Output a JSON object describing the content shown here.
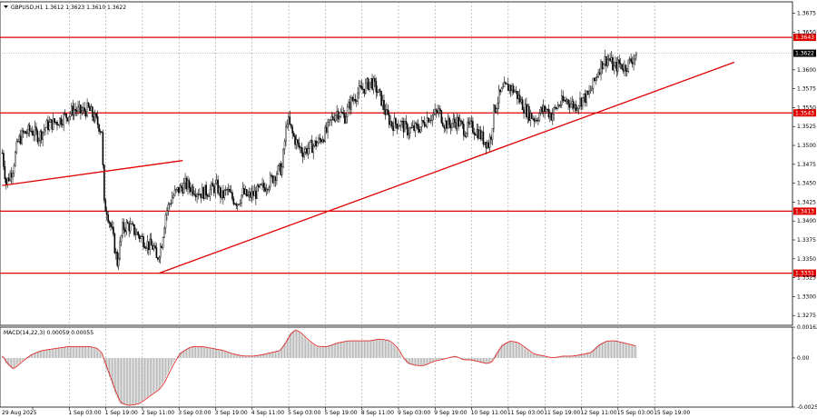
{
  "header": {
    "title": "GBPUSD,H1  1.3612 1.3623 1.3610 1.3622",
    "macd_label": "MACD(14,22,3) 0.00059 0.00055"
  },
  "colors": {
    "level_line": "#e00000",
    "trend_line": "#e00000",
    "candle": "#000000",
    "grid": "#8a8a8a",
    "macd_hist": "#a8a8a8",
    "macd_signal": "#e03030",
    "current_price_line": "#aaaaaa"
  },
  "chart_data": [
    {
      "type": "candlestick",
      "symbol": "GBPUSD",
      "timeframe": "H1",
      "last_bar": {
        "open": 1.3612,
        "high": 1.3623,
        "low": 1.361,
        "close": 1.3622
      },
      "ylim": [
        1.3262,
        1.369
      ],
      "y_ticks": [
        "1.3675",
        "1.3650",
        "1.3643",
        "1.3622",
        "1.3600",
        "1.3575",
        "1.3550",
        "1.3543",
        "1.3525",
        "1.3500",
        "1.3475",
        "1.3450",
        "1.3425",
        "1.3413",
        "1.3400",
        "1.3375",
        "1.3350",
        "1.3331",
        "1.3325",
        "1.3300",
        "1.3275"
      ],
      "y_tick_values": [
        1.3675,
        1.365,
        1.3643,
        1.3622,
        1.36,
        1.3575,
        1.355,
        1.3543,
        1.3525,
        1.35,
        1.3475,
        1.345,
        1.3425,
        1.3413,
        1.34,
        1.3375,
        1.335,
        1.3331,
        1.3325,
        1.33,
        1.3275
      ],
      "x_tick_labels": [
        "29 Aug 2025",
        "1 Sep 03:00",
        "1 Sep 19:00",
        "2 Sep 11:00",
        "3 Sep 03:00",
        "3 Sep 19:00",
        "4 Sep 11:00",
        "5 Sep 03:00",
        "5 Sep 19:00",
        "8 Sep 11:00",
        "9 Sep 03:00",
        "9 Sep 19:00",
        "10 Sep 11:00",
        "11 Sep 03:00",
        "11 Sep 19:00",
        "12 Sep 11:00",
        "15 Sep 03:00",
        "15 Sep 19:00"
      ],
      "horizontal_levels": [
        {
          "price": 1.3643,
          "label": "1.3643"
        },
        {
          "price": 1.3543,
          "label": "1.3543"
        },
        {
          "price": 1.3413,
          "label": "1.3413"
        },
        {
          "price": 1.3331,
          "label": "1.3331"
        }
      ],
      "current_price": {
        "price": 1.3622,
        "label": "1.3622"
      },
      "trend_lines": [
        {
          "from": {
            "bar": 0,
            "price": 1.3447
          },
          "to": {
            "bar": 138,
            "price": 1.348
          }
        },
        {
          "from": {
            "bar": 120,
            "price": 1.3331
          },
          "to": {
            "bar": 560,
            "price": 1.361
          }
        }
      ],
      "anchors": [
        [
          0,
          1.349
        ],
        [
          3,
          1.345
        ],
        [
          8,
          1.347
        ],
        [
          12,
          1.3505
        ],
        [
          16,
          1.3515
        ],
        [
          22,
          1.352
        ],
        [
          28,
          1.3512
        ],
        [
          34,
          1.3526
        ],
        [
          42,
          1.3532
        ],
        [
          50,
          1.354
        ],
        [
          55,
          1.3548
        ],
        [
          60,
          1.3544
        ],
        [
          66,
          1.3548
        ],
        [
          72,
          1.3532
        ],
        [
          76,
          1.352
        ],
        [
          78,
          1.342
        ],
        [
          80,
          1.3415
        ],
        [
          84,
          1.3385
        ],
        [
          88,
          1.3345
        ],
        [
          92,
          1.339
        ],
        [
          96,
          1.3395
        ],
        [
          102,
          1.3385
        ],
        [
          108,
          1.3375
        ],
        [
          112,
          1.3368
        ],
        [
          116,
          1.3365
        ],
        [
          118,
          1.3348
        ],
        [
          122,
          1.3372
        ],
        [
          125,
          1.341
        ],
        [
          130,
          1.3432
        ],
        [
          134,
          1.344
        ],
        [
          140,
          1.3448
        ],
        [
          146,
          1.3443
        ],
        [
          152,
          1.3437
        ],
        [
          158,
          1.344
        ],
        [
          164,
          1.3446
        ],
        [
          168,
          1.3432
        ],
        [
          172,
          1.344
        ],
        [
          176,
          1.343
        ],
        [
          180,
          1.3425
        ],
        [
          184,
          1.3437
        ],
        [
          188,
          1.3432
        ],
        [
          194,
          1.3437
        ],
        [
          200,
          1.3445
        ],
        [
          206,
          1.3455
        ],
        [
          210,
          1.3465
        ],
        [
          214,
          1.347
        ],
        [
          216,
          1.3505
        ],
        [
          218,
          1.3535
        ],
        [
          222,
          1.3515
        ],
        [
          226,
          1.35
        ],
        [
          230,
          1.3492
        ],
        [
          236,
          1.3498
        ],
        [
          242,
          1.3505
        ],
        [
          248,
          1.3518
        ],
        [
          252,
          1.3535
        ],
        [
          256,
          1.3545
        ],
        [
          262,
          1.3538
        ],
        [
          266,
          1.3555
        ],
        [
          272,
          1.357
        ],
        [
          278,
          1.3578
        ],
        [
          282,
          1.3585
        ],
        [
          286,
          1.3575
        ],
        [
          290,
          1.356
        ],
        [
          294,
          1.354
        ],
        [
          298,
          1.3528
        ],
        [
          304,
          1.353
        ],
        [
          310,
          1.352
        ],
        [
          316,
          1.3522
        ],
        [
          320,
          1.3525
        ],
        [
          326,
          1.3538
        ],
        [
          330,
          1.354
        ],
        [
          334,
          1.3545
        ],
        [
          338,
          1.353
        ],
        [
          342,
          1.3528
        ],
        [
          348,
          1.3532
        ],
        [
          354,
          1.352
        ],
        [
          358,
          1.3525
        ],
        [
          364,
          1.3518
        ],
        [
          368,
          1.3508
        ],
        [
          372,
          1.3502
        ],
        [
          374,
          1.3515
        ],
        [
          376,
          1.3545
        ],
        [
          380,
          1.3565
        ],
        [
          384,
          1.3575
        ],
        [
          388,
          1.3578
        ],
        [
          392,
          1.3572
        ],
        [
          396,
          1.356
        ],
        [
          400,
          1.3548
        ],
        [
          404,
          1.354
        ],
        [
          408,
          1.3535
        ],
        [
          412,
          1.3545
        ],
        [
          416,
          1.3548
        ],
        [
          420,
          1.354
        ],
        [
          426,
          1.3555
        ],
        [
          432,
          1.356
        ],
        [
          438,
          1.3552
        ],
        [
          444,
          1.3562
        ],
        [
          448,
          1.3565
        ],
        [
          452,
          1.358
        ],
        [
          456,
          1.36
        ],
        [
          460,
          1.3612
        ],
        [
          464,
          1.3615
        ],
        [
          468,
          1.3602
        ],
        [
          472,
          1.3608
        ],
        [
          476,
          1.3603
        ],
        [
          480,
          1.361
        ],
        [
          485,
          1.3622
        ]
      ]
    },
    {
      "type": "histogram+line",
      "title": "MACD(14,22,3) 0.00059 0.00055",
      "ylim": [
        -0.00258,
        0.00162
      ],
      "y_ticks": [
        "0.00162",
        "0.00",
        "-0.00258"
      ],
      "y_tick_values": [
        0.00162,
        0.0,
        -0.00258
      ],
      "anchors": [
        [
          0,
          0.0001
        ],
        [
          3,
          -0.0003
        ],
        [
          8,
          -0.0006
        ],
        [
          14,
          -0.0002
        ],
        [
          22,
          0.0002
        ],
        [
          30,
          0.0004
        ],
        [
          40,
          0.0005
        ],
        [
          50,
          0.0006
        ],
        [
          60,
          0.0006
        ],
        [
          66,
          0.0006
        ],
        [
          72,
          0.0005
        ],
        [
          76,
          0.0002
        ],
        [
          78,
          -0.0003
        ],
        [
          82,
          -0.001
        ],
        [
          86,
          -0.0018
        ],
        [
          90,
          -0.0024
        ],
        [
          96,
          -0.0025
        ],
        [
          104,
          -0.0024
        ],
        [
          110,
          -0.0021
        ],
        [
          116,
          -0.0018
        ],
        [
          120,
          -0.0016
        ],
        [
          124,
          -0.0012
        ],
        [
          128,
          -0.0006
        ],
        [
          132,
          -0.0001
        ],
        [
          136,
          0.0003
        ],
        [
          144,
          0.0006
        ],
        [
          152,
          0.0006
        ],
        [
          160,
          0.0005
        ],
        [
          168,
          0.0004
        ],
        [
          176,
          0.0002
        ],
        [
          184,
          0.0001
        ],
        [
          192,
          0.0001
        ],
        [
          200,
          0.0002
        ],
        [
          206,
          0.0003
        ],
        [
          212,
          0.0004
        ],
        [
          216,
          0.0008
        ],
        [
          220,
          0.0013
        ],
        [
          224,
          0.0015
        ],
        [
          228,
          0.0013
        ],
        [
          234,
          0.0009
        ],
        [
          240,
          0.0006
        ],
        [
          248,
          0.0006
        ],
        [
          256,
          0.0008
        ],
        [
          264,
          0.0009
        ],
        [
          272,
          0.0009
        ],
        [
          280,
          0.0009
        ],
        [
          288,
          0.001
        ],
        [
          296,
          0.0009
        ],
        [
          302,
          0.0005
        ],
        [
          306,
          0.0
        ],
        [
          310,
          -0.0003
        ],
        [
          316,
          -0.0004
        ],
        [
          322,
          -0.0004
        ],
        [
          328,
          -0.0002
        ],
        [
          334,
          -0.0001
        ],
        [
          340,
          0.0
        ],
        [
          346,
          0.0001
        ],
        [
          352,
          -0.0001
        ],
        [
          358,
          -0.0001
        ],
        [
          364,
          -0.0002
        ],
        [
          370,
          -0.0003
        ],
        [
          374,
          -0.0002
        ],
        [
          378,
          0.0003
        ],
        [
          382,
          0.0007
        ],
        [
          388,
          0.0009
        ],
        [
          394,
          0.0008
        ],
        [
          400,
          0.0005
        ],
        [
          406,
          0.0002
        ],
        [
          414,
          0.0001
        ],
        [
          420,
          0.0
        ],
        [
          428,
          0.0001
        ],
        [
          436,
          0.0001
        ],
        [
          444,
          0.0002
        ],
        [
          450,
          0.0003
        ],
        [
          456,
          0.0007
        ],
        [
          462,
          0.0009
        ],
        [
          468,
          0.0009
        ],
        [
          474,
          0.0008
        ],
        [
          480,
          0.0007
        ],
        [
          485,
          0.0006
        ]
      ]
    }
  ]
}
